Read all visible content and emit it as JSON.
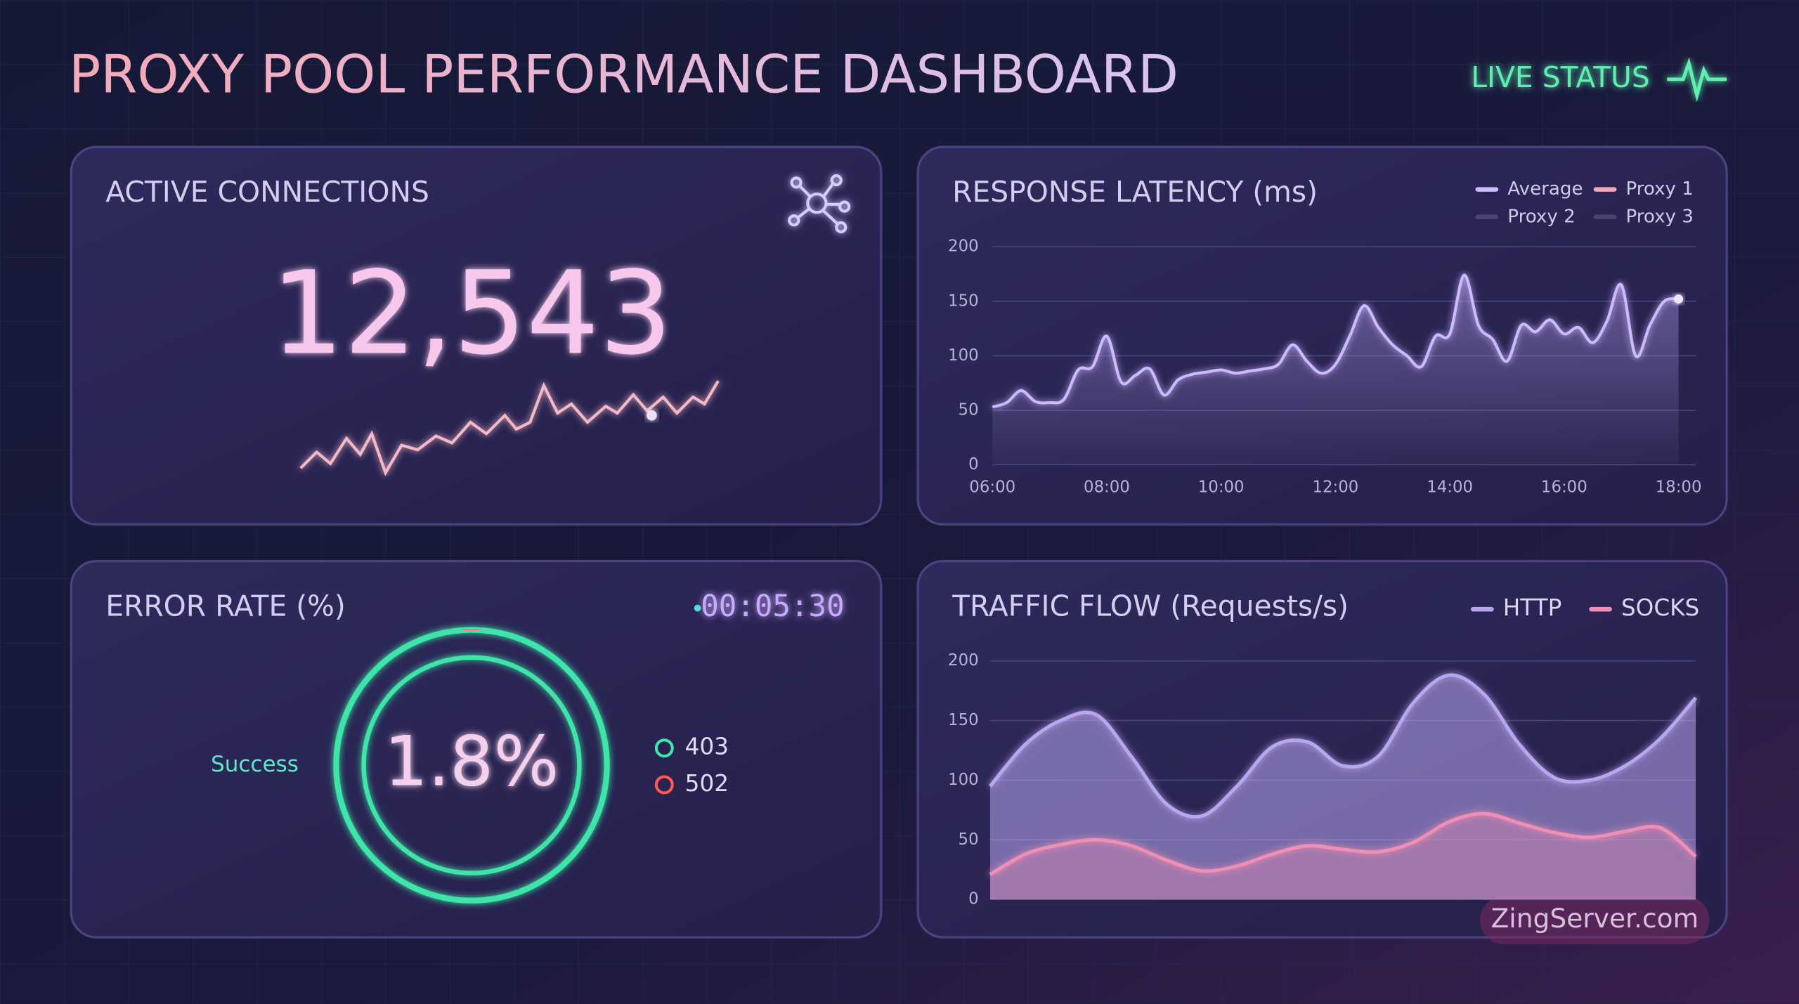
{
  "header": {
    "title": "PROXY POOL PERFORMANCE DASHBOARD",
    "status": "LIVE STATUS"
  },
  "active_connections": {
    "title": "ACTIVE CONNECTIONS",
    "value": "12,543"
  },
  "error_rate": {
    "title": "ERROR RATE (%)",
    "timer": "00:05:30",
    "value": 1.8,
    "value_label": "1.8%",
    "success_label": "Success",
    "legend": [
      {
        "name": "403",
        "color": "#3ee6a8"
      },
      {
        "name": "502",
        "color": "#ff5a4e"
      }
    ]
  },
  "chart_data": [
    {
      "type": "line",
      "title": "RESPONSE LATENCY (ms)",
      "x": [
        "06:00",
        "06:15",
        "06:30",
        "06:45",
        "07:00",
        "07:15",
        "07:30",
        "07:45",
        "08:00",
        "08:15",
        "08:30",
        "08:45",
        "09:00",
        "09:15",
        "09:30",
        "09:45",
        "10:00",
        "10:15",
        "10:30",
        "10:45",
        "11:00",
        "11:15",
        "11:30",
        "11:45",
        "12:00",
        "12:15",
        "12:30",
        "12:45",
        "13:00",
        "13:15",
        "13:30",
        "13:45",
        "14:00",
        "14:15",
        "14:30",
        "14:45",
        "15:00",
        "15:15",
        "15:30",
        "15:45",
        "16:00",
        "16:15",
        "16:30",
        "16:45",
        "17:00",
        "17:15",
        "17:30",
        "17:45",
        "18:00"
      ],
      "series": [
        {
          "name": "Average",
          "color": "#cdb9ff",
          "values": [
            53,
            57,
            68,
            58,
            57,
            60,
            87,
            90,
            118,
            76,
            82,
            88,
            64,
            78,
            83,
            85,
            87,
            84,
            86,
            88,
            92,
            110,
            95,
            84,
            92,
            118,
            146,
            126,
            110,
            100,
            90,
            118,
            120,
            174,
            128,
            115,
            95,
            128,
            122,
            133,
            120,
            126,
            112,
            132,
            165,
            100,
            128,
            150,
            152
          ]
        }
      ],
      "legend": [
        {
          "name": "Proxy 1",
          "color": "#f4a7b9"
        },
        {
          "name": "Proxy 2",
          "color": "#4a4470"
        },
        {
          "name": "Proxy 3",
          "color": "#4a4470"
        }
      ],
      "xticks": [
        "06:00",
        "08:00",
        "10:00",
        "12:00",
        "14:00",
        "16:00",
        "18:00"
      ],
      "ylim": [
        0,
        200
      ],
      "yticks": [
        0,
        50,
        100,
        150,
        200
      ],
      "grid": true
    },
    {
      "type": "area",
      "title": "TRAFFIC FLOW (Requests/s)",
      "series": [
        {
          "name": "HTTP",
          "color": "#b9a6f0",
          "values": [
            95,
            130,
            150,
            155,
            120,
            80,
            70,
            95,
            128,
            132,
            112,
            120,
            165,
            188,
            172,
            130,
            102,
            100,
            112,
            135,
            169
          ]
        },
        {
          "name": "SOCKS",
          "color": "#f08fb5",
          "values": [
            21,
            38,
            46,
            50,
            45,
            33,
            24,
            28,
            38,
            45,
            42,
            40,
            48,
            65,
            72,
            64,
            56,
            52,
            57,
            60,
            36
          ]
        }
      ],
      "ylim": [
        0,
        200
      ],
      "yticks": [
        0,
        50,
        100,
        150,
        200
      ],
      "grid": true
    }
  ],
  "watermark": "ZingServer.com"
}
